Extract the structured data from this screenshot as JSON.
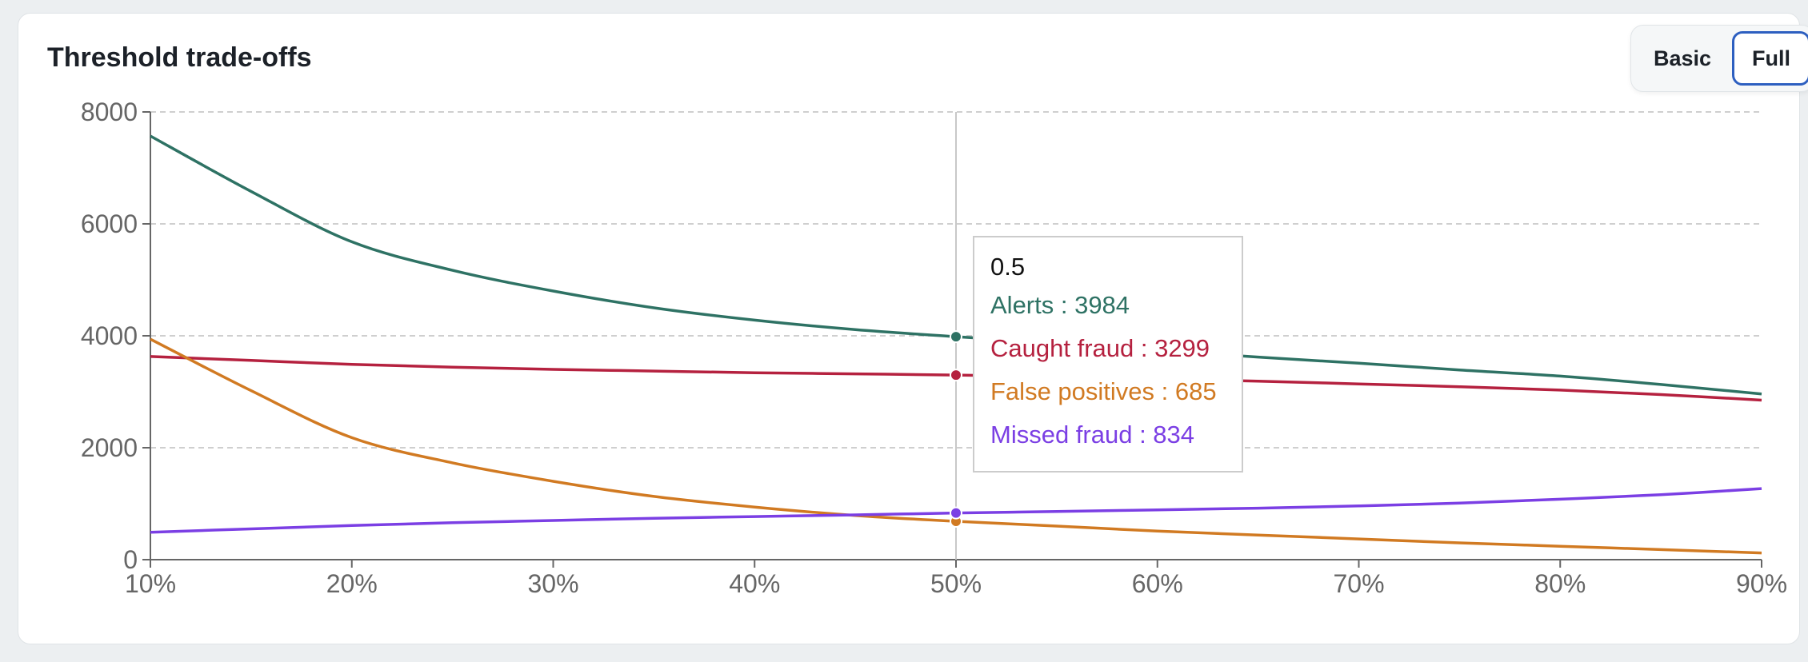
{
  "card": {
    "title": "Threshold trade-offs"
  },
  "toggle": {
    "basic_label": "Basic",
    "full_label": "Full",
    "selected": "Full"
  },
  "chart_data": {
    "type": "line",
    "title": "Threshold trade-offs",
    "xlabel": "",
    "ylabel": "",
    "x": [
      0.1,
      0.15,
      0.2,
      0.25,
      0.3,
      0.35,
      0.4,
      0.45,
      0.5,
      0.55,
      0.6,
      0.65,
      0.7,
      0.75,
      0.8,
      0.85,
      0.9
    ],
    "x_tick_labels": [
      "10%",
      "20%",
      "30%",
      "40%",
      "50%",
      "60%",
      "70%",
      "80%",
      "90%"
    ],
    "x_ticks": [
      0.1,
      0.2,
      0.3,
      0.4,
      0.5,
      0.6,
      0.7,
      0.8,
      0.9
    ],
    "xlim": [
      0.1,
      0.9
    ],
    "y_ticks": [
      0,
      2000,
      4000,
      6000,
      8000
    ],
    "ylim": [
      0,
      8000
    ],
    "grid": "horizontal dashed",
    "series": [
      {
        "name": "Alerts",
        "color": "#2e7264",
        "values": [
          7570,
          6580,
          5680,
          5170,
          4800,
          4500,
          4280,
          4110,
          3984,
          3870,
          3740,
          3620,
          3510,
          3390,
          3280,
          3130,
          2960
        ]
      },
      {
        "name": "Caught fraud",
        "color": "#b5213f",
        "values": [
          3630,
          3560,
          3490,
          3440,
          3400,
          3370,
          3340,
          3320,
          3299,
          3270,
          3230,
          3190,
          3140,
          3090,
          3030,
          2950,
          2850
        ]
      },
      {
        "name": "False positives",
        "color": "#d17a22",
        "values": [
          3940,
          3020,
          2180,
          1730,
          1400,
          1130,
          940,
          790,
          685,
          600,
          510,
          440,
          370,
          300,
          240,
          180,
          120
        ]
      },
      {
        "name": "Missed fraud",
        "color": "#7b3fe4",
        "values": [
          490,
          550,
          610,
          660,
          700,
          740,
          770,
          800,
          834,
          860,
          890,
          920,
          960,
          1010,
          1080,
          1160,
          1270
        ]
      }
    ],
    "hover": {
      "label": "0.5",
      "x": 0.5,
      "items": [
        {
          "name": "Alerts",
          "value": 3984,
          "text": "Alerts : 3984"
        },
        {
          "name": "Caught fraud",
          "value": 3299,
          "text": "Caught fraud : 3299"
        },
        {
          "name": "False positives",
          "value": 685,
          "text": "False positives : 685"
        },
        {
          "name": "Missed fraud",
          "value": 834,
          "text": "Missed fraud : 834"
        }
      ]
    }
  }
}
